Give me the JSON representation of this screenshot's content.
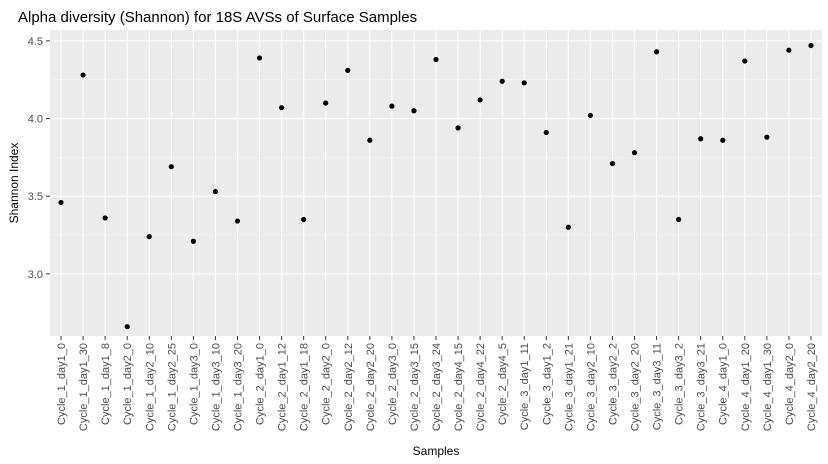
{
  "chart_data": {
    "type": "scatter",
    "title": "Alpha diversity (Shannon) for 18S AVSs of Surface Samples",
    "xlabel": "Samples",
    "ylabel": "Shannon Index",
    "ylim": [
      2.6,
      4.57
    ],
    "yticks": [
      3.0,
      3.5,
      4.0,
      4.5
    ],
    "yticklabels": [
      "3.0",
      "3.5",
      "4.0",
      "4.5"
    ],
    "grid": true,
    "background": "#ebebeb",
    "point_color": "#000000",
    "categories": [
      "Cycle_1_day1_0",
      "Cycle_1_day1_30",
      "Cycle_1_day1_8",
      "Cycle_1_day2_0",
      "Cycle_1_day2_10",
      "Cycle_1_day2_25",
      "Cycle_1_day3_0",
      "Cycle_1_day3_10",
      "Cycle_1_day3_20",
      "Cycle_2_day1_0",
      "Cycle_2_day1_12",
      "Cycle_2_day1_18",
      "Cycle_2_day2_0",
      "Cycle_2_day2_12",
      "Cycle_2_day2_20",
      "Cycle_2_day3_0",
      "Cycle_2_day3_15",
      "Cycle_2_day3_24",
      "Cycle_2_day4_15",
      "Cycle_2_day4_22",
      "Cycle_2_day4_5",
      "Cycle_3_day1_11",
      "Cycle_3_day1_2",
      "Cycle_3_day1_21",
      "Cycle_3_day2_10",
      "Cycle_3_day2_2",
      "Cycle_3_day2_20",
      "Cycle_3_day3_11",
      "Cycle_3_day3_2",
      "Cycle_3_day3_21",
      "Cycle_4_day1_0",
      "Cycle_4_day1_20",
      "Cycle_4_day1_30",
      "Cycle_4_day2_0",
      "Cycle_4_day2_20"
    ],
    "values": [
      3.46,
      4.28,
      3.36,
      2.66,
      3.24,
      3.69,
      3.21,
      3.53,
      3.34,
      4.39,
      4.07,
      3.35,
      4.1,
      4.31,
      3.86,
      4.08,
      4.05,
      4.38,
      3.94,
      4.12,
      4.24,
      4.23,
      3.91,
      3.3,
      4.02,
      3.71,
      3.78,
      4.43,
      3.35,
      3.87,
      3.86,
      4.37,
      3.88,
      4.44,
      4.47
    ]
  }
}
